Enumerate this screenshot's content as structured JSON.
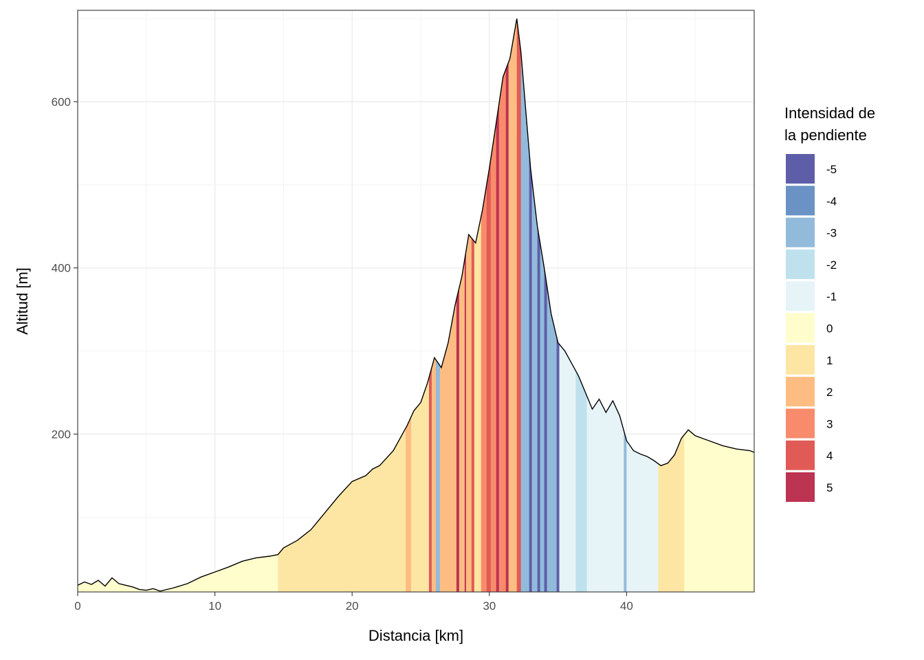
{
  "chart_data": {
    "type": "area",
    "xlabel": "Distancia [km]",
    "ylabel": "Altitud [m]",
    "xlim": [
      0,
      49.3
    ],
    "ylim": [
      10,
      710
    ],
    "x_ticks": [
      0,
      10,
      20,
      30,
      40
    ],
    "y_ticks": [
      200,
      400,
      600
    ],
    "grid": true,
    "legend": {
      "title_lines": [
        "Intensidad de",
        "la pendiente"
      ],
      "placement": "right",
      "entries": [
        {
          "label": "-5",
          "color": "#5e5ea8"
        },
        {
          "label": "-4",
          "color": "#6a92c5"
        },
        {
          "label": "-3",
          "color": "#92bbdb"
        },
        {
          "label": "-2",
          "color": "#bfe1ed"
        },
        {
          "label": "-1",
          "color": "#e6f4f8"
        },
        {
          "label": "0",
          "color": "#fffdcc"
        },
        {
          "label": "1",
          "color": "#fde5a4"
        },
        {
          "label": "2",
          "color": "#fdbd82"
        },
        {
          "label": "3",
          "color": "#f88b6b"
        },
        {
          "label": "4",
          "color": "#e05b55"
        },
        {
          "label": "5",
          "color": "#bd3352"
        }
      ]
    },
    "profile": {
      "x": [
        0,
        0.5,
        1,
        1.5,
        2,
        2.5,
        3,
        3.5,
        4,
        4.5,
        5,
        5.5,
        6,
        7,
        8,
        9,
        10,
        11,
        12,
        13,
        14,
        14.6,
        15,
        16,
        17,
        18,
        19,
        20,
        21,
        21.5,
        22,
        23,
        24,
        24.5,
        25,
        25.5,
        26,
        26.5,
        27,
        27.5,
        28,
        28.5,
        29,
        29.5,
        30,
        30.5,
        31,
        31.5,
        32,
        32.3,
        32.6,
        33,
        33.5,
        34,
        34.5,
        35,
        35.5,
        36,
        36.5,
        37,
        37.5,
        38,
        38.5,
        39,
        39.5,
        40,
        40.5,
        41,
        41.5,
        42,
        42.5,
        43,
        43.5,
        44,
        44.5,
        45,
        46,
        47,
        48,
        49,
        49.3
      ],
      "y": [
        18,
        22,
        19,
        24,
        17,
        27,
        20,
        18,
        16,
        13,
        12,
        14,
        11,
        15,
        20,
        28,
        34,
        40,
        47,
        51,
        53,
        55,
        63,
        72,
        85,
        105,
        125,
        143,
        150,
        158,
        162,
        180,
        210,
        228,
        238,
        262,
        292,
        280,
        310,
        355,
        390,
        440,
        430,
        470,
        520,
        575,
        630,
        652,
        700,
        660,
        600,
        520,
        450,
        400,
        345,
        310,
        300,
        285,
        270,
        250,
        230,
        242,
        226,
        240,
        222,
        192,
        180,
        176,
        173,
        168,
        162,
        165,
        175,
        195,
        205,
        198,
        192,
        186,
        182,
        180,
        178
      ]
    },
    "slope_bands": [
      {
        "x0": 0,
        "x1": 14.6,
        "class": "0"
      },
      {
        "x0": 14.6,
        "x1": 23.9,
        "class": "1"
      },
      {
        "x0": 23.9,
        "x1": 24.3,
        "class": "2"
      },
      {
        "x0": 24.3,
        "x1": 25.6,
        "class": "1"
      },
      {
        "x0": 25.6,
        "x1": 25.8,
        "class": "4"
      },
      {
        "x0": 25.8,
        "x1": 26.1,
        "class": "2"
      },
      {
        "x0": 26.1,
        "x1": 26.4,
        "class": "-3"
      },
      {
        "x0": 26.4,
        "x1": 27.6,
        "class": "2"
      },
      {
        "x0": 27.6,
        "x1": 27.8,
        "class": "5"
      },
      {
        "x0": 27.8,
        "x1": 28.2,
        "class": "2"
      },
      {
        "x0": 28.2,
        "x1": 28.3,
        "class": "5"
      },
      {
        "x0": 28.3,
        "x1": 28.7,
        "class": "2"
      },
      {
        "x0": 28.7,
        "x1": 28.9,
        "class": "4"
      },
      {
        "x0": 28.9,
        "x1": 29.4,
        "class": "1"
      },
      {
        "x0": 29.4,
        "x1": 29.8,
        "class": "3"
      },
      {
        "x0": 29.8,
        "x1": 30.1,
        "class": "4"
      },
      {
        "x0": 30.1,
        "x1": 30.5,
        "class": "3"
      },
      {
        "x0": 30.5,
        "x1": 30.7,
        "class": "5"
      },
      {
        "x0": 30.7,
        "x1": 31.2,
        "class": "3"
      },
      {
        "x0": 31.2,
        "x1": 31.4,
        "class": "5"
      },
      {
        "x0": 31.4,
        "x1": 32.0,
        "class": "2"
      },
      {
        "x0": 32.0,
        "x1": 32.3,
        "class": "4"
      },
      {
        "x0": 32.3,
        "x1": 32.9,
        "class": "-3"
      },
      {
        "x0": 32.9,
        "x1": 33.1,
        "class": "-5"
      },
      {
        "x0": 33.1,
        "x1": 33.5,
        "class": "-3"
      },
      {
        "x0": 33.5,
        "x1": 33.7,
        "class": "-5"
      },
      {
        "x0": 33.7,
        "x1": 34.0,
        "class": "-3"
      },
      {
        "x0": 34.0,
        "x1": 34.2,
        "class": "-5"
      },
      {
        "x0": 34.2,
        "x1": 34.9,
        "class": "-3"
      },
      {
        "x0": 34.9,
        "x1": 35.1,
        "class": "-5"
      },
      {
        "x0": 35.1,
        "x1": 36.3,
        "class": "-1"
      },
      {
        "x0": 36.3,
        "x1": 37.1,
        "class": "-2"
      },
      {
        "x0": 37.1,
        "x1": 39.8,
        "class": "-1"
      },
      {
        "x0": 39.8,
        "x1": 40.0,
        "class": "-3"
      },
      {
        "x0": 40.0,
        "x1": 42.3,
        "class": "-1"
      },
      {
        "x0": 42.3,
        "x1": 44.2,
        "class": "1"
      },
      {
        "x0": 44.2,
        "x1": 49.3,
        "class": "0"
      }
    ]
  }
}
